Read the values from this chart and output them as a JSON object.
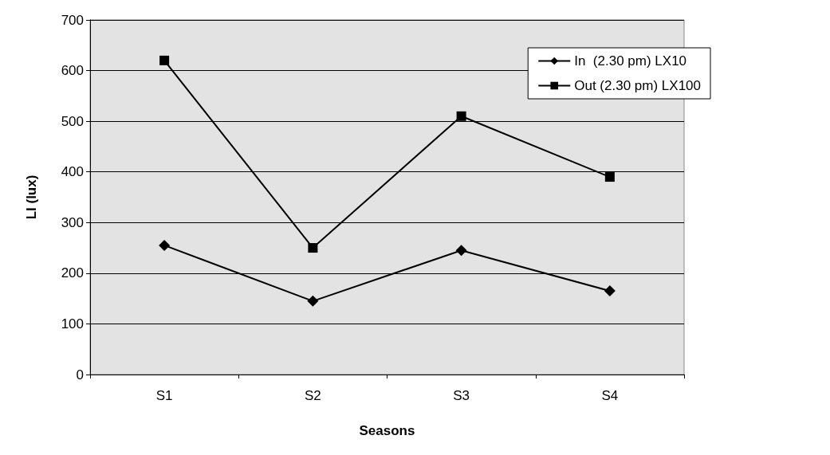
{
  "chart_data": {
    "type": "line",
    "xlabel": "Seasons",
    "ylabel": "LI (lux)",
    "categories": [
      "S1",
      "S2",
      "S3",
      "S4"
    ],
    "series": [
      {
        "name": "In  (2.30 pm) LX10",
        "color": "#000000",
        "values": [
          255,
          145,
          245,
          165
        ],
        "marker": "diamond"
      },
      {
        "name": "Out (2.30 pm) LX100",
        "color": "#000000",
        "values": [
          620,
          250,
          510,
          390
        ],
        "marker": "square"
      }
    ],
    "ylim": [
      0,
      700
    ],
    "yticks": [
      0,
      100,
      200,
      300,
      400,
      500,
      600,
      700
    ],
    "grid": "y",
    "legend": "top right"
  }
}
